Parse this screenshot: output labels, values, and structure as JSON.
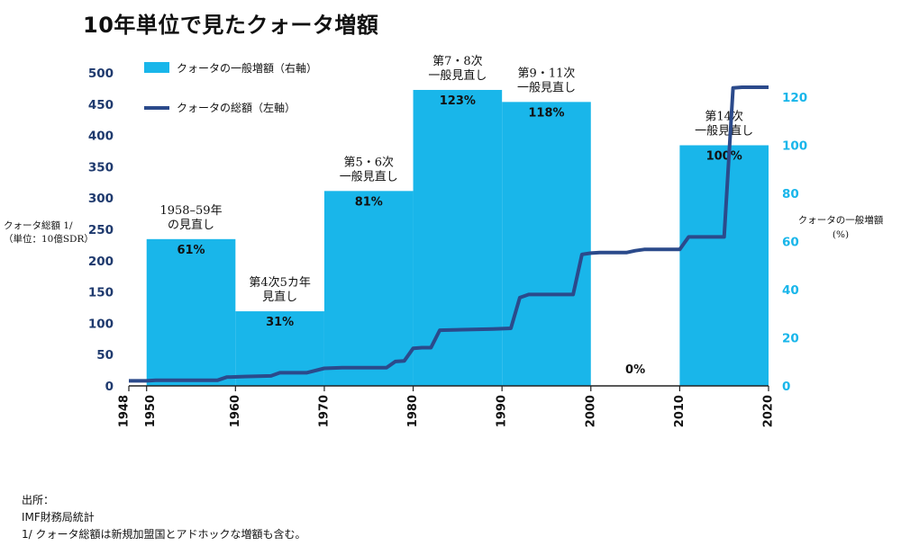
{
  "title": "10年単位で見たクォータ増額",
  "chart_data": {
    "type": "bar+line",
    "title": "10年単位で見たクォータ増額",
    "x_range": [
      1948,
      2020
    ],
    "x_ticks": [
      1948,
      1950,
      1960,
      1970,
      1980,
      1990,
      2000,
      2010,
      2020
    ],
    "y_left": {
      "label": "クォータ総額 1/",
      "label2": "（単位：10億SDR）",
      "range": [
        0,
        500
      ],
      "ticks": [
        0,
        50,
        100,
        150,
        200,
        250,
        300,
        350,
        400,
        450,
        500
      ]
    },
    "y_right": {
      "label": "クォータの一般増額",
      "label2": "(%)",
      "range": [
        0,
        130
      ],
      "ticks": [
        0,
        20,
        40,
        60,
        80,
        100,
        120
      ]
    },
    "bars": {
      "name": "クォータの一般増額（右軸）",
      "color": "#19b6ea",
      "items": [
        {
          "x0": 1950,
          "x1": 1960,
          "value": 61,
          "label": "61%",
          "annotation": [
            "1958–59年",
            "の見直し"
          ]
        },
        {
          "x0": 1960,
          "x1": 1970,
          "value": 31,
          "label": "31%",
          "annotation": [
            "第4次5カ年",
            "見直し"
          ]
        },
        {
          "x0": 1970,
          "x1": 1980,
          "value": 81,
          "label": "81%",
          "annotation": [
            "第5・6次",
            "一般見直し"
          ]
        },
        {
          "x0": 1980,
          "x1": 1990,
          "value": 123,
          "label": "123%",
          "annotation": [
            "第7・8次",
            "一般見直し"
          ]
        },
        {
          "x0": 1990,
          "x1": 2000,
          "value": 118,
          "label": "118%",
          "annotation": [
            "第9・11次",
            "一般見直し"
          ]
        },
        {
          "x0": 2000,
          "x1": 2010,
          "value": 0,
          "label": "0%",
          "annotation": []
        },
        {
          "x0": 2010,
          "x1": 2020,
          "value": 100,
          "label": "100%",
          "annotation": [
            "第14次",
            "一般見直し"
          ]
        }
      ]
    },
    "line": {
      "name": "クォータの総額（左軸）",
      "color": "#2b4a8b",
      "points": [
        [
          1948,
          8
        ],
        [
          1950,
          8
        ],
        [
          1951,
          9
        ],
        [
          1958,
          9
        ],
        [
          1959,
          14
        ],
        [
          1961,
          15
        ],
        [
          1964,
          16
        ],
        [
          1965,
          21
        ],
        [
          1968,
          21
        ],
        [
          1970,
          28
        ],
        [
          1972,
          29
        ],
        [
          1977,
          29
        ],
        [
          1978,
          39
        ],
        [
          1979,
          40
        ],
        [
          1980,
          60
        ],
        [
          1981,
          61
        ],
        [
          1982,
          61
        ],
        [
          1983,
          89
        ],
        [
          1989,
          91
        ],
        [
          1991,
          92
        ],
        [
          1992,
          141
        ],
        [
          1993,
          146
        ],
        [
          1998,
          146
        ],
        [
          1999,
          210
        ],
        [
          2000,
          212
        ],
        [
          2001,
          213
        ],
        [
          2004,
          213
        ],
        [
          2005,
          216
        ],
        [
          2006,
          218
        ],
        [
          2009,
          218
        ],
        [
          2010,
          218
        ],
        [
          2011,
          238
        ],
        [
          2015,
          238
        ],
        [
          2016,
          476
        ],
        [
          2017,
          477
        ],
        [
          2020,
          477
        ]
      ]
    }
  },
  "footnotes": [
    "出所：",
    "IMF財務局統計",
    "1/ クォータ総額は新規加盟国とアドホックな増額も含む。"
  ]
}
